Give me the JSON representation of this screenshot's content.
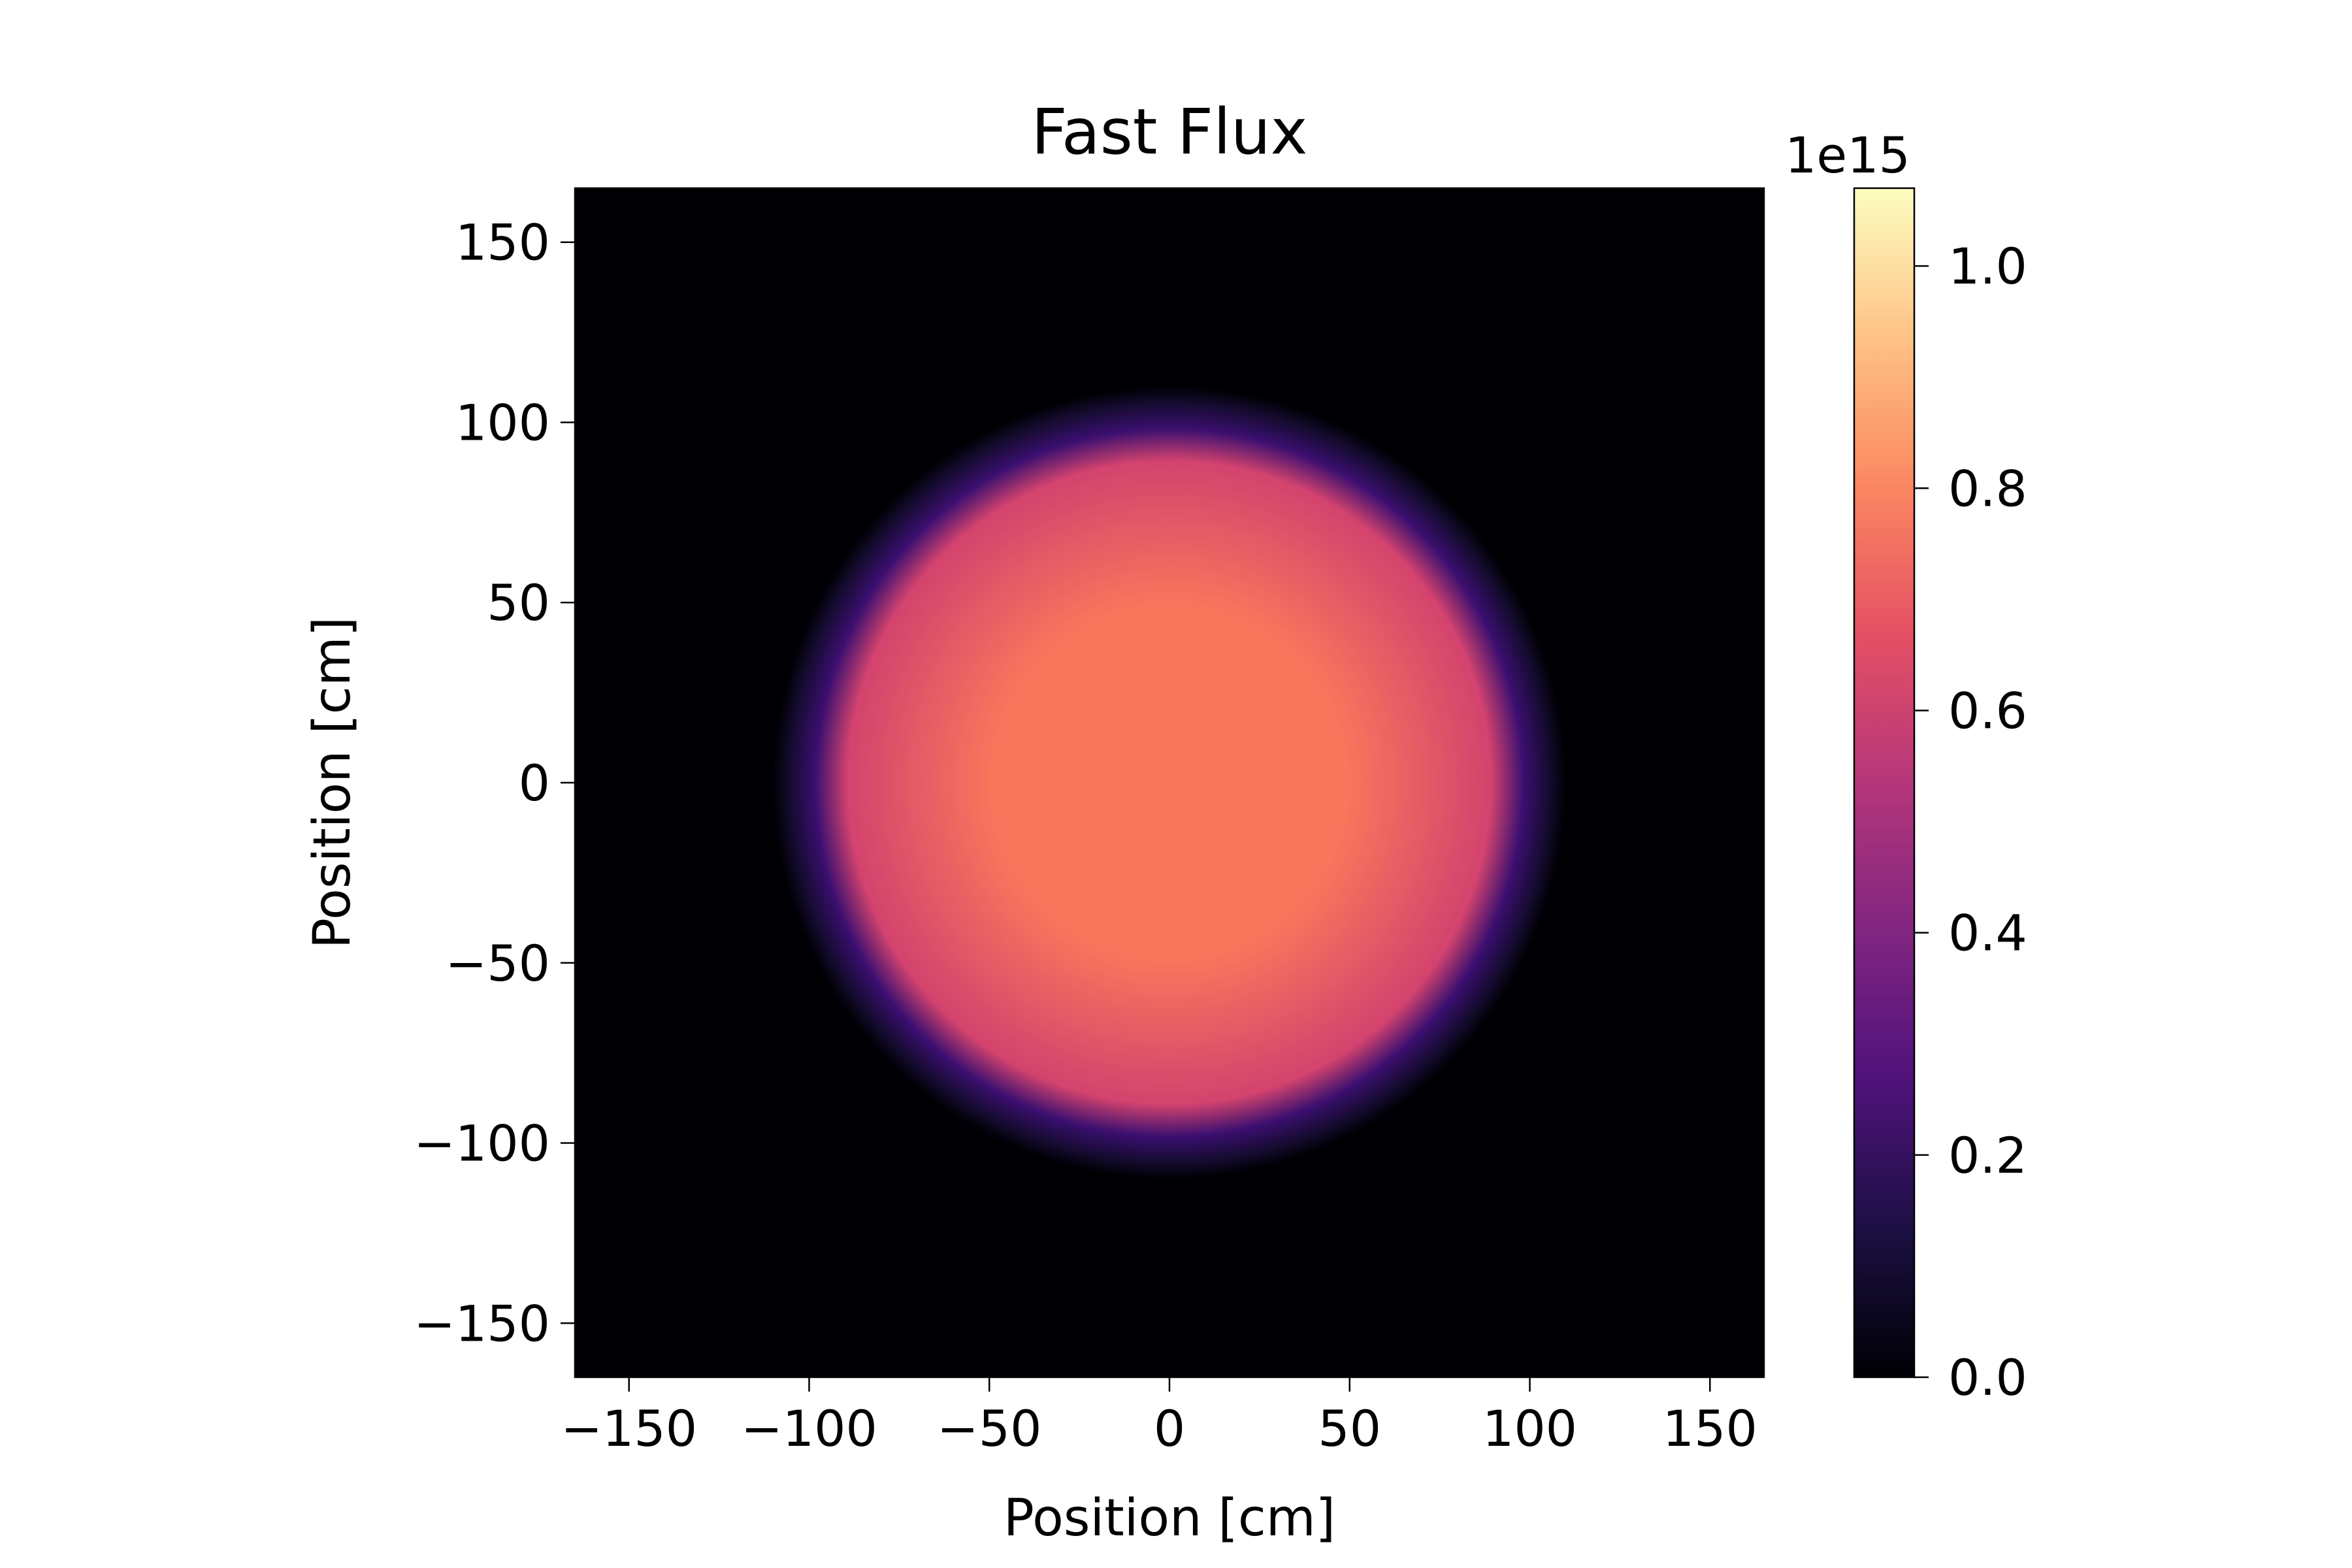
{
  "chart_data": {
    "type": "heatmap",
    "title": "Fast Flux",
    "xlabel": "Position [cm]",
    "ylabel": "Position [cm]",
    "xlim": [
      -165,
      165
    ],
    "ylim": [
      -165,
      165
    ],
    "x_ticks": [
      -150,
      -100,
      -50,
      0,
      50,
      100,
      150
    ],
    "y_ticks": [
      -150,
      -100,
      -50,
      0,
      50,
      100,
      150
    ],
    "x_tick_labels": [
      "−150",
      "−100",
      "−50",
      "0",
      "50",
      "100",
      "150"
    ],
    "y_tick_labels": [
      "−150",
      "−100",
      "−50",
      "0",
      "50",
      "100",
      "150"
    ],
    "colormap": "magma",
    "grid": false,
    "colorbar": {
      "range": [
        0.0,
        1.07
      ],
      "ticks": [
        0.0,
        0.2,
        0.4,
        0.6,
        0.8,
        1.0
      ],
      "tick_labels": [
        "0.0",
        "0.2",
        "0.4",
        "0.6",
        "0.8",
        "1.0"
      ],
      "offset_label": "1e15"
    },
    "field": {
      "shape": "disc",
      "center": [
        0,
        0
      ],
      "core_radius": 92,
      "edge_width": 18,
      "center_value": 0.78,
      "core_edge_value": 0.6,
      "rim_value": 0.25,
      "outside_value": 0.0
    },
    "colors": {
      "background_outside": "#000004",
      "rim": "#3b0f70",
      "core_edge": "#d3436e",
      "center": "#f8765c",
      "colormap_top": "#fcfdbf"
    }
  }
}
